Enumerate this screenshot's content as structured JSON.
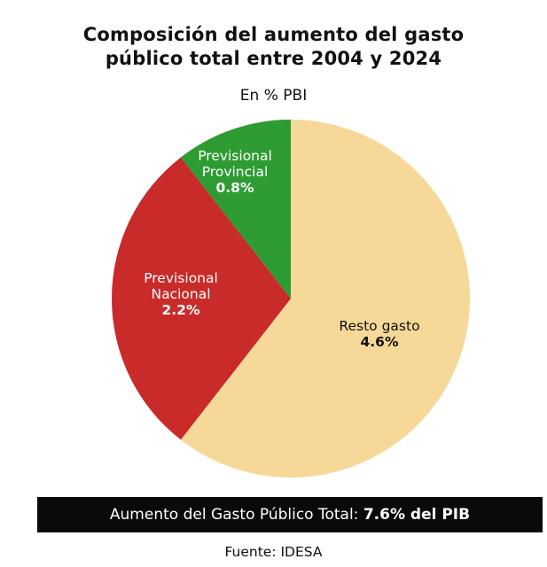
{
  "title_line1": "Composición del aumento del gasto",
  "title_line2": "público total entre 2004 y 2024",
  "subtitle": "En % PBI",
  "chart_data": {
    "type": "pie",
    "slices": [
      {
        "name_lines": [
          "Resto gasto"
        ],
        "value": 4.6,
        "value_label": "4.6%",
        "color": "#f6d898",
        "text_color": "#111111"
      },
      {
        "name_lines": [
          "Previsional",
          "Nacional"
        ],
        "value": 2.2,
        "value_label": "2.2%",
        "color": "#c92a2a",
        "text_color": "#ffffff"
      },
      {
        "name_lines": [
          "Previsional",
          "Provincial"
        ],
        "value": 0.8,
        "value_label": "0.8%",
        "color": "#2e9c33",
        "text_color": "#ffffff"
      }
    ],
    "start": "12 o'clock",
    "direction": "clockwise"
  },
  "banner": {
    "text": "Aumento del  Gasto Público Total: ",
    "bold": "7.6% del PIB"
  },
  "source": "Fuente: IDESA"
}
